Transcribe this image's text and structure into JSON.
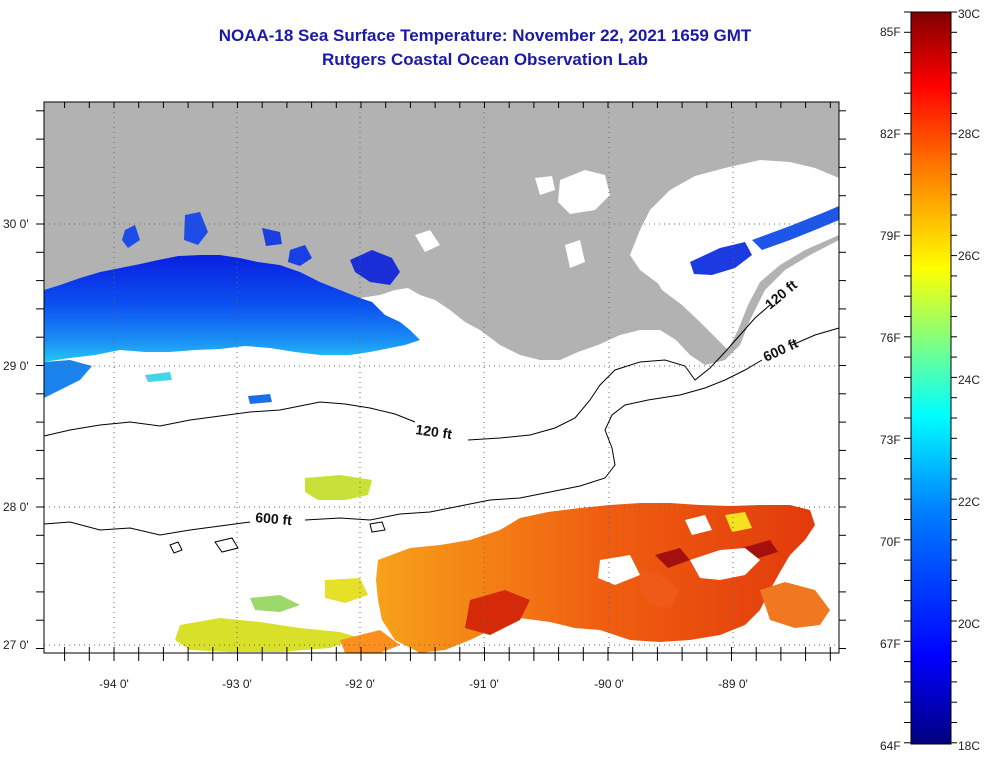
{
  "title": "NOAA-18 Sea Surface Temperature:  November 22, 2021 1659 GMT",
  "subtitle": "Rutgers Coastal Ocean Observation Lab",
  "map": {
    "lon_labels": [
      "-94 0'",
      "-93 0'",
      "-92 0'",
      "-91 0'",
      "-90 0'",
      "-89 0'"
    ],
    "lat_labels": [
      "30 0'",
      "29 0'",
      "28 0'",
      "27 0'"
    ],
    "contour_labels": [
      "120 ft",
      "600 ft",
      "120 ft",
      "600 ft"
    ],
    "land_color": "#b2b2b2",
    "cloud_color": "#ffffff"
  },
  "colorbar": {
    "fahrenheit_labels": [
      "85F",
      "82F",
      "79F",
      "76F",
      "73F",
      "70F",
      "67F",
      "64F"
    ],
    "celsius_labels": [
      "30C",
      "28C",
      "26C",
      "24C",
      "22C",
      "20C",
      "18C"
    ],
    "colors": [
      "#00007f",
      "#0000ff",
      "#0080ff",
      "#00ffff",
      "#80ff80",
      "#ffff00",
      "#ff8000",
      "#ff0000",
      "#7f0000"
    ]
  }
}
